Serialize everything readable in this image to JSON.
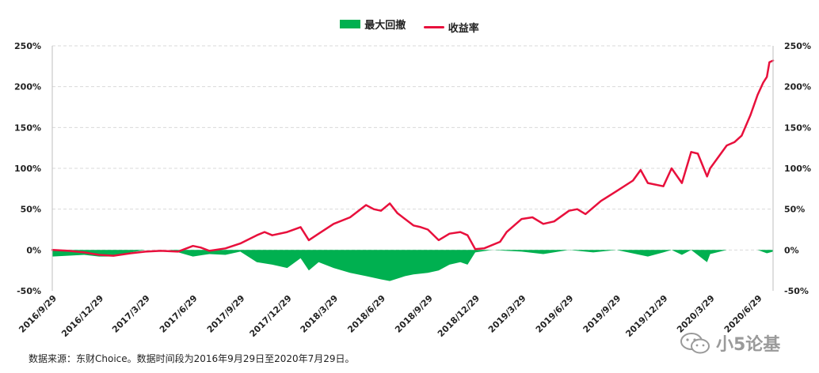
{
  "legend": {
    "drawdown": "最大回撤",
    "return": "收益率"
  },
  "source_note": "数据来源：东财Choice。数据时间段为2016年9月29日至2020年7月29日。",
  "watermark": "小5论基",
  "colors": {
    "drawdown": "#00b050",
    "return": "#e8103c",
    "grid": "#d9d9d9"
  },
  "chart_data": {
    "type": "line",
    "title": "",
    "xlabel": "",
    "ylabel": "",
    "ylim": [
      -50,
      250
    ],
    "y_ticks": [
      "250%",
      "200%",
      "150%",
      "100%",
      "50%",
      "0%",
      "-50%"
    ],
    "y_tick_values": [
      250,
      200,
      150,
      100,
      50,
      0,
      -50
    ],
    "x_tick_labels": [
      "2016/9/29",
      "2016/12/29",
      "2017/3/29",
      "2017/6/29",
      "2017/9/29",
      "2017/12/29",
      "2018/3/29",
      "2018/6/29",
      "2018/9/29",
      "2018/12/29",
      "2019/3/29",
      "2019/6/29",
      "2019/9/29",
      "2019/12/29",
      "2020/3/29",
      "2020/6/29"
    ],
    "x_range": [
      "2016/9/29",
      "2020/7/29"
    ],
    "grid": "horizontal-dashed",
    "legend_position": "top-center",
    "series": [
      {
        "name": "收益率",
        "style": "line",
        "points": [
          [
            "2016/9/29",
            0
          ],
          [
            "2016/10/31",
            -1
          ],
          [
            "2016/11/30",
            -3
          ],
          [
            "2016/12/29",
            -6
          ],
          [
            "2017/1/26",
            -7
          ],
          [
            "2017/2/28",
            -4
          ],
          [
            "2017/3/29",
            -2
          ],
          [
            "2017/4/28",
            -1
          ],
          [
            "2017/5/31",
            -2
          ],
          [
            "2017/6/29",
            5
          ],
          [
            "2017/7/14",
            3
          ],
          [
            "2017/7/31",
            -1
          ],
          [
            "2017/8/31",
            2
          ],
          [
            "2017/9/29",
            8
          ],
          [
            "2017/10/31",
            18
          ],
          [
            "2017/11/15",
            22
          ],
          [
            "2017/11/30",
            18
          ],
          [
            "2017/12/29",
            22
          ],
          [
            "2018/1/24",
            28
          ],
          [
            "2018/2/9",
            12
          ],
          [
            "2018/2/28",
            20
          ],
          [
            "2018/3/29",
            32
          ],
          [
            "2018/4/30",
            40
          ],
          [
            "2018/5/31",
            55
          ],
          [
            "2018/6/15",
            50
          ],
          [
            "2018/6/29",
            48
          ],
          [
            "2018/7/16",
            57
          ],
          [
            "2018/7/31",
            45
          ],
          [
            "2018/8/31",
            30
          ],
          [
            "2018/9/14",
            28
          ],
          [
            "2018/9/28",
            25
          ],
          [
            "2018/10/19",
            12
          ],
          [
            "2018/11/9",
            20
          ],
          [
            "2018/11/30",
            22
          ],
          [
            "2018/12/14",
            18
          ],
          [
            "2018/12/29",
            1
          ],
          [
            "2019/1/15",
            2
          ],
          [
            "2019/2/15",
            10
          ],
          [
            "2019/2/28",
            22
          ],
          [
            "2019/3/29",
            38
          ],
          [
            "2019/4/19",
            40
          ],
          [
            "2019/5/10",
            32
          ],
          [
            "2019/5/31",
            35
          ],
          [
            "2019/6/29",
            48
          ],
          [
            "2019/7/15",
            50
          ],
          [
            "2019/7/31",
            44
          ],
          [
            "2019/8/30",
            60
          ],
          [
            "2019/9/29",
            72
          ],
          [
            "2019/10/31",
            85
          ],
          [
            "2019/11/15",
            98
          ],
          [
            "2019/11/29",
            82
          ],
          [
            "2019/12/29",
            78
          ],
          [
            "2020/1/14",
            100
          ],
          [
            "2020/2/3",
            82
          ],
          [
            "2020/2/21",
            120
          ],
          [
            "2020/3/5",
            118
          ],
          [
            "2020/3/23",
            90
          ],
          [
            "2020/3/29",
            100
          ],
          [
            "2020/4/30",
            128
          ],
          [
            "2020/5/15",
            132
          ],
          [
            "2020/5/29",
            140
          ],
          [
            "2020/6/15",
            165
          ],
          [
            "2020/6/29",
            190
          ],
          [
            "2020/7/10",
            205
          ],
          [
            "2020/7/17",
            212
          ],
          [
            "2020/7/22",
            230
          ],
          [
            "2020/7/29",
            232
          ]
        ]
      },
      {
        "name": "最大回撤",
        "style": "area",
        "points": [
          [
            "2016/9/29",
            -8
          ],
          [
            "2016/11/30",
            -6
          ],
          [
            "2016/12/29",
            -8
          ],
          [
            "2017/1/26",
            -8
          ],
          [
            "2017/2/28",
            -3
          ],
          [
            "2017/3/29",
            0
          ],
          [
            "2017/5/15",
            0
          ],
          [
            "2017/6/29",
            -8
          ],
          [
            "2017/7/31",
            -5
          ],
          [
            "2017/8/31",
            -6
          ],
          [
            "2017/9/29",
            -2
          ],
          [
            "2017/10/31",
            -15
          ],
          [
            "2017/11/30",
            -18
          ],
          [
            "2017/12/29",
            -22
          ],
          [
            "2018/1/24",
            -10
          ],
          [
            "2018/2/9",
            -25
          ],
          [
            "2018/2/28",
            -15
          ],
          [
            "2018/3/29",
            -22
          ],
          [
            "2018/4/30",
            -28
          ],
          [
            "2018/5/31",
            -32
          ],
          [
            "2018/6/29",
            -36
          ],
          [
            "2018/7/16",
            -38
          ],
          [
            "2018/8/15",
            -32
          ],
          [
            "2018/8/31",
            -30
          ],
          [
            "2018/9/28",
            -28
          ],
          [
            "2018/10/19",
            -25
          ],
          [
            "2018/11/9",
            -18
          ],
          [
            "2018/11/30",
            -15
          ],
          [
            "2018/12/14",
            -18
          ],
          [
            "2018/12/29",
            -3
          ],
          [
            "2019/1/31",
            0
          ],
          [
            "2019/3/29",
            -2
          ],
          [
            "2019/5/10",
            -5
          ],
          [
            "2019/6/29",
            0
          ],
          [
            "2019/8/15",
            -3
          ],
          [
            "2019/9/29",
            0
          ],
          [
            "2019/11/29",
            -8
          ],
          [
            "2019/12/29",
            -3
          ],
          [
            "2020/1/14",
            0
          ],
          [
            "2020/2/3",
            -6
          ],
          [
            "2020/2/21",
            0
          ],
          [
            "2020/3/23",
            -15
          ],
          [
            "2020/3/29",
            -5
          ],
          [
            "2020/4/30",
            0
          ],
          [
            "2020/6/29",
            0
          ],
          [
            "2020/7/17",
            -4
          ],
          [
            "2020/7/29",
            -2
          ]
        ]
      }
    ]
  }
}
